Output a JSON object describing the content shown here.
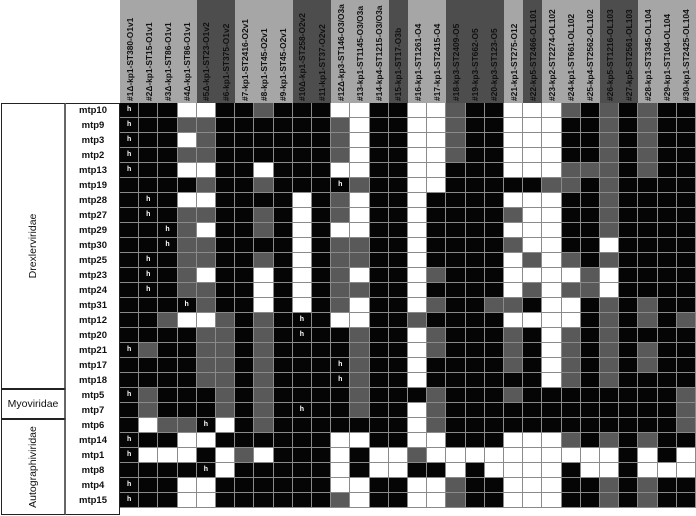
{
  "colors": {
    "B": "#050505",
    "G": "#595959",
    "W": "#ffffff",
    "header_light": "#a6a6a6",
    "header_dark": "#4d4d4d",
    "h_mark": "#ffffff"
  },
  "chart_data": {
    "type": "heatmap",
    "title": "",
    "legend": {
      "B": "black cell",
      "G": "gray cell",
      "W": "white cell",
      "h": "marker 'h' in cell"
    },
    "columns": [
      {
        "label": "#1Δ-kp1-ST380-O1v1",
        "band": "light"
      },
      {
        "label": "#2Δ-kp1-ST15-O1v1",
        "band": "light"
      },
      {
        "label": "#3Δ-kp1-ST86-O1v1",
        "band": "light"
      },
      {
        "label": "#4Δ-kp1-ST86-O1v1",
        "band": "light"
      },
      {
        "label": "#5Δ-kp1-ST23-O1v2",
        "band": "dark"
      },
      {
        "label": "#6-kp1-ST375-O1v2",
        "band": "dark"
      },
      {
        "label": "#7-kp1-ST2416-O2v1",
        "band": "light"
      },
      {
        "label": "#8-kp1-ST45-O2v1",
        "band": "light"
      },
      {
        "label": "#9-kp1-ST45-O2v1",
        "band": "light"
      },
      {
        "label": "#10Δ-kp1-ST258-O2v2",
        "band": "dark"
      },
      {
        "label": "#11-kp1-ST37-O2v2",
        "band": "dark"
      },
      {
        "label": "#12Δ-kp3-ST146-O3/O3a",
        "band": "light"
      },
      {
        "label": "#13-kp1-ST1145-O3/O3a",
        "band": "light"
      },
      {
        "label": "#14-kp4-ST1215-O3/O3a",
        "band": "light"
      },
      {
        "label": "#15-kp1-ST17-O3b",
        "band": "dark"
      },
      {
        "label": "#16-kp1-ST1261-O4",
        "band": "light"
      },
      {
        "label": "#17-kp1-ST2415-O4",
        "band": "light"
      },
      {
        "label": "#18-kp3-ST2409-O5",
        "band": "dark"
      },
      {
        "label": "#19-kp3-ST662-O5",
        "band": "dark"
      },
      {
        "label": "#20-kp3-ST123-O5",
        "band": "dark"
      },
      {
        "label": "#21-kp1-ST275-O12",
        "band": "light"
      },
      {
        "label": "#22-kp5-ST2466-OL101",
        "band": "dark"
      },
      {
        "label": "#23-kp2-ST2274-OL102",
        "band": "light"
      },
      {
        "label": "#24-kp1-ST661-OL102",
        "band": "light"
      },
      {
        "label": "#25-kp4-ST2562-OL102",
        "band": "light"
      },
      {
        "label": "#26-kp5-ST1216-OL103",
        "band": "dark"
      },
      {
        "label": "#27-kp5-ST2561-OL103",
        "band": "dark"
      },
      {
        "label": "#28-kp1-ST3345-OL104",
        "band": "light"
      },
      {
        "label": "#29-kp1-ST104-OL104",
        "band": "light"
      },
      {
        "label": "#30-kp1-ST2425-OL104",
        "band": "light"
      }
    ],
    "families": [
      {
        "name": "Drexlerviridae",
        "rows": 19
      },
      {
        "name": "Myoviridae",
        "rows": 2
      },
      {
        "name": "Autographiviridae",
        "rows": 6
      }
    ],
    "rows": [
      {
        "label": "mtp10",
        "cells": "BBBWWBBGBBBWWBBWWGBBWWWGBGBGBB",
        "h": [
          1
        ]
      },
      {
        "label": "mtp9",
        "cells": "BBBGGBBBBBBGWBBWWGBBWWWBBGBGBB",
        "h": [
          1
        ]
      },
      {
        "label": "mtp3",
        "cells": "BBBWGBBBBBBGWBBWWGBBWWWBBGBGBB",
        "h": [
          1
        ]
      },
      {
        "label": "mtp2",
        "cells": "BBBGGBBBBBBGWBBWWGBBWWWBBGBGBB",
        "h": [
          1
        ]
      },
      {
        "label": "mtp13",
        "cells": "BBBWWBBWBBBWWBBWWBBBWWWGGGBGBB",
        "h": [
          1
        ]
      },
      {
        "label": "mtp19",
        "cells": "BBBBGBBGBBBBGBBWWBBBBBGGBGBBBB",
        "h": [
          12
        ]
      },
      {
        "label": "mtp28",
        "cells": "BBBWWBBBBWBGWBBWBBBBWWWBBGBBBB",
        "h": [
          2
        ]
      },
      {
        "label": "mtp27",
        "cells": "BBBGGBBGBWBGWBBWBBBBGWWBBGBBBB",
        "h": [
          2
        ]
      },
      {
        "label": "mtp29",
        "cells": "BBBGWBBGBWBWWBBWBBBBWWWBBGBBBB",
        "h": [
          3
        ]
      },
      {
        "label": "mtp30",
        "cells": "BBBGGBBBBWBGGBBWBBBBGWWBBWBBBB",
        "h": [
          3
        ]
      },
      {
        "label": "mtp25",
        "cells": "BBBGGBBGBWBGGBBWBBBBWGWGBGBBBB",
        "h": [
          2
        ]
      },
      {
        "label": "mtp23",
        "cells": "BBBGWBBWBWBGWBBWGBBBWWWWGWBBBB",
        "h": [
          2
        ]
      },
      {
        "label": "mtp24",
        "cells": "BBBGGBBWBWBGGBBWBBBBWGWGGWBBBB",
        "h": [
          2
        ]
      },
      {
        "label": "mtp31",
        "cells": "BBBBGBBWBWBGWBBWGBBGGBWWBGBGBB",
        "h": [
          4
        ]
      },
      {
        "label": "mtp12",
        "cells": "BBGWWGBGBBBWWBBGBBBBWWWWBGBGBG",
        "h": [
          10
        ]
      },
      {
        "label": "mtp20",
        "cells": "BBBBGGBGBBBBGBBWGBBBGBWGBGBBBB",
        "h": [
          10
        ]
      },
      {
        "label": "mtp21",
        "cells": "BGBBGGBGBBBBGBBWGBBBGBWGBGBGBB",
        "h": [
          1
        ]
      },
      {
        "label": "mtp17",
        "cells": "BBBBGGBGBBBBGBBWBBBBGBWGBGBGBB",
        "h": [
          12
        ]
      },
      {
        "label": "mtp18",
        "cells": "BBBBGGBGBBBBGBBWBBBBBBWGBGBBBB",
        "h": [
          12
        ]
      },
      {
        "label": "mtp5",
        "cells": "BGBBBGBGBBBBGBBBGBBBGBBBBBBBBG",
        "h": [
          1
        ]
      },
      {
        "label": "mtp7",
        "cells": "BGBBBGBGBBBBGBBWGBBBBBBBBBBBBG",
        "h": [
          10
        ]
      },
      {
        "label": "mtp6",
        "cells": "BWGGBWBGBBBBBBBWGBBBBBBBBBBBBG",
        "h": [
          5
        ]
      },
      {
        "label": "mtp14",
        "cells": "BBBWWBBBBBBWWBBWWBBBWWWGBGBGBB",
        "h": [
          1
        ]
      },
      {
        "label": "mtp1",
        "cells": "BWWWBWGWBBBWBWWGWWWWWWWWWWBWBW",
        "h": [
          1
        ]
      },
      {
        "label": "mtp8",
        "cells": "BBBBBWBBBBBWBWWBBWBWWWWBWWBWWW",
        "h": [
          5
        ]
      },
      {
        "label": "mtp4",
        "cells": "BBBWWBBBBBBWWBBWWGBBWWWBBGBGBB",
        "h": [
          1
        ]
      },
      {
        "label": "mtp15",
        "cells": "BBBWWBBBBBBGWBBWWGBBWWWBBGBGBB",
        "h": [
          1
        ]
      }
    ]
  }
}
